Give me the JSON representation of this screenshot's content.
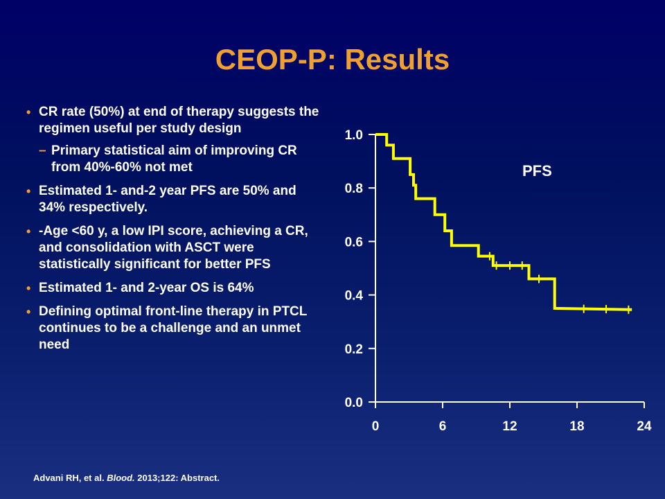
{
  "title": "CEOP-P: Results",
  "bullets": [
    {
      "text": "CR rate (50%)  at end of therapy suggests the regimen useful per study design",
      "sub": "Primary statistical aim of improving CR from 40%-60%  not met"
    },
    {
      "text": " Estimated 1- and-2 year PFS are 50%  and 34%  respectively."
    },
    {
      "text": "-Age <60 y, a low IPI score, achieving a CR, and consolidation with ASCT were statistically significant for better PFS"
    },
    {
      "text": " Estimated 1- and 2-year OS is 64%"
    },
    {
      "text": "Defining optimal front-line therapy in PTCL continues to be a challenge and an unmet need"
    }
  ],
  "citation": {
    "authors": "Advani RH, et al. ",
    "journal": "Blood.",
    "details": " 2013;122: Abstract."
  },
  "colors": {
    "title": "#f0a030",
    "bullet": "#f0a030",
    "curve": "#ffff00",
    "axis": "#ffffff"
  },
  "chart_data": {
    "type": "line",
    "label": "PFS",
    "xlim": [
      0,
      24
    ],
    "ylim": [
      0,
      1.0
    ],
    "x_ticks": [
      "0",
      "6",
      "12",
      "18",
      "24"
    ],
    "y_ticks": [
      "0.0",
      "0.2",
      "0.4",
      "0.6",
      "0.8",
      "1.0"
    ],
    "step_points": [
      [
        0,
        1.0
      ],
      [
        1.0,
        1.0
      ],
      [
        1.0,
        0.96
      ],
      [
        1.6,
        0.96
      ],
      [
        1.6,
        0.91
      ],
      [
        3.1,
        0.91
      ],
      [
        3.1,
        0.85
      ],
      [
        3.4,
        0.85
      ],
      [
        3.4,
        0.81
      ],
      [
        3.6,
        0.81
      ],
      [
        3.6,
        0.76
      ],
      [
        5.3,
        0.76
      ],
      [
        5.3,
        0.7
      ],
      [
        6.2,
        0.7
      ],
      [
        6.2,
        0.64
      ],
      [
        6.8,
        0.64
      ],
      [
        6.8,
        0.585
      ],
      [
        9.2,
        0.585
      ],
      [
        9.2,
        0.545
      ],
      [
        10.5,
        0.545
      ],
      [
        10.5,
        0.51
      ],
      [
        13.7,
        0.51
      ],
      [
        13.7,
        0.46
      ],
      [
        16.0,
        0.46
      ],
      [
        16.0,
        0.35
      ],
      [
        22.9,
        0.345
      ]
    ],
    "censor_marks": [
      [
        10.2,
        0.545
      ],
      [
        10.8,
        0.51
      ],
      [
        12.0,
        0.51
      ],
      [
        13.1,
        0.51
      ],
      [
        14.6,
        0.46
      ],
      [
        18.6,
        0.348
      ],
      [
        20.6,
        0.347
      ],
      [
        22.6,
        0.345
      ]
    ]
  }
}
